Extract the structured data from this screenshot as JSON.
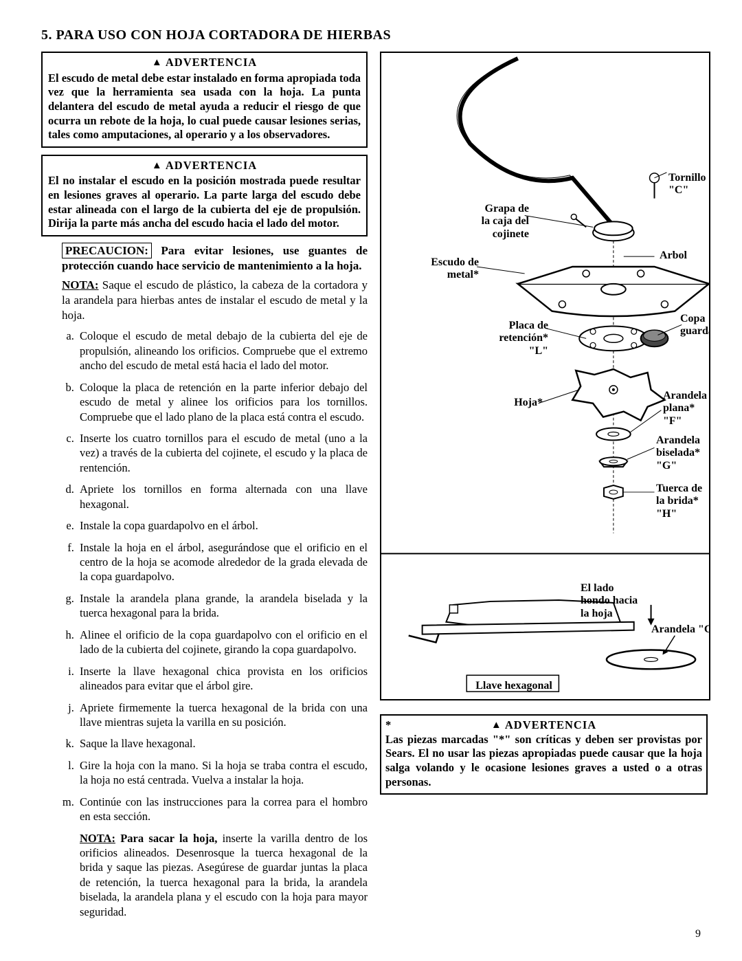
{
  "title": "5. PARA USO CON HOJA CORTADORA DE HIERBAS",
  "warn1_head": "ADVERTENCIA",
  "warn1_body": "El escudo de metal debe estar instalado en forma apropiada toda vez que la herramienta sea usada con la hoja. La punta delantera del escudo de metal ayuda a reducir el riesgo de que ocurra un rebote de la hoja, lo cual puede causar lesiones serias, tales como amputaciones, al operario y a los observadores.",
  "warn2_head": "ADVERTENCIA",
  "warn2_body": "El no instalar el escudo en la posición mostrada puede resultar en lesiones graves al operario. La parte larga del escudo debe estar alineada con el largo de la cubierta del eje de propulsión. Dirija la parte más ancha del escudo hacia el lado del motor.",
  "precaution_label": "PRECAUCION:",
  "precaution_text": " Para evitar lesiones, use guantes de protección cuando hace servicio de mantenimiento a la hoja.",
  "nota_label": "NOTA:",
  "nota_text": " Saque el escudo de plástico, la cabeza de la cortadora y la arandela para hierbas antes de instalar el escudo de metal y la hoja.",
  "steps": [
    "Coloque el escudo de metal debajo de la cubierta del eje de propulsión, alineando los orificios. Compruebe que el extremo ancho del escudo de metal está hacia el lado del motor.",
    "Coloque la placa de retención en la parte inferior debajo del escudo de metal y alinee los orificios para los tornillos. Compruebe que el lado plano de la placa está contra el escudo.",
    "Inserte los cuatro tornillos para el escudo de metal (uno a la vez) a través de la cubierta del cojinete, el escudo y la placa de rentención.",
    "Apriete los tornillos en forma alternada con una llave hexagonal.",
    "Instale la copa guardapolvo en el árbol.",
    "Instale la hoja en el árbol, asegurándose que el orificio en el centro de la hoja se acomode alrededor de la grada elevada de la copa guardapolvo.",
    "Instale la arandela plana grande, la arandela biselada y la tuerca hexagonal para la brida.",
    "Alinee el orificio de la copa guardapolvo con el orificio en el lado de la cubierta del cojinete, girando la copa guardapolvo.",
    "Inserte la llave hexagonal chica provista en los orificios alineados para evitar que el árbol gire.",
    "Apriete firmemente la tuerca hexagonal de la brida con una llave mientras sujeta la varilla en su posición.",
    "Saque la llave hexagonal.",
    "Gire la hoja con la mano. Si la hoja se traba contra el escudo, la hoja no está centrada. Vuelva a instalar la hoja.",
    "Continúe con las instrucciones para la correa para el hombro en esta sección."
  ],
  "nota2_label": "NOTA:",
  "nota2_bold": " Para sacar la hoja,",
  "nota2_rest": " inserte la varilla dentro de los orificios alineados. Desenrosque la tuerca hexagonal de la brida y saque las piezas. Asegúrese de guardar juntas la placa de retención, la tuerca hexagonal para la brida, la arandela biselada, la arandela plana y el escudo con la hoja para mayor seguridad.",
  "diag": {
    "tornillo": "Tornillo\n\"C\"",
    "grapa": "Grapa de\nla caja del\ncojinete",
    "arbol": "Arbol",
    "escudo": "Escudo de\nmetal*",
    "placa": "Placa de\nretención*\n\"L\"",
    "copa": "Copa\nguardapolvo",
    "hoja": "Hoja*",
    "arandela_plana": "Arandela\nplana*\n\"F\"",
    "arandela_bis": "Arandela\nbiselada*\n\"G\"",
    "tuerca": "Tuerca de\nla brida*\n\"H\"",
    "lado": "El lado\nhondo hacia\nla hoja",
    "arandela_g": "Arandela \"G\"",
    "llave": "Llave hexagonal"
  },
  "warn3_star": "*",
  "warn3_head": "ADVERTENCIA",
  "warn3_body": "Las piezas marcadas \"*\" son críticas y deben ser provistas por Sears. El no usar las piezas apropiadas puede causar que la hoja salga volando y le ocasione lesiones graves a usted o a otras personas.",
  "pagenum": "9"
}
